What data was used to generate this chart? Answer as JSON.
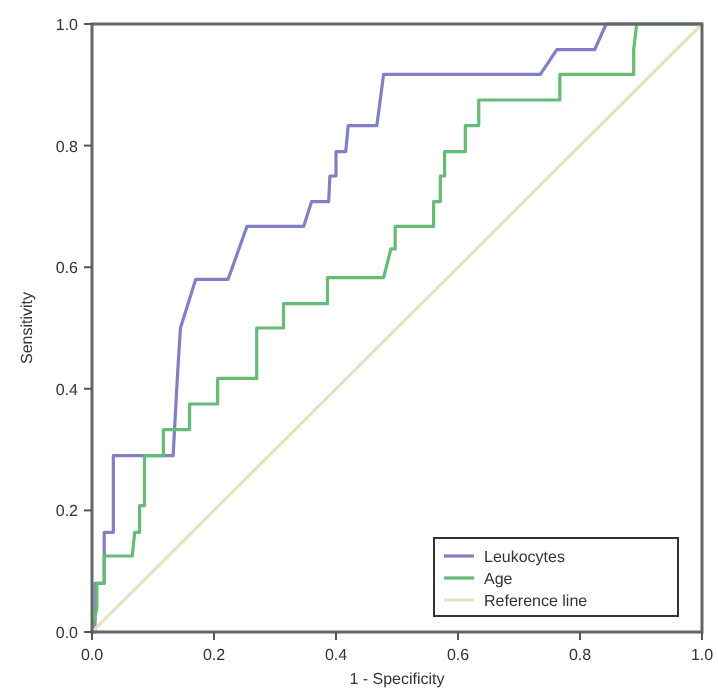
{
  "chart_data": {
    "type": "line",
    "xlabel": "1 - Specificity",
    "ylabel": "Sensitivity",
    "xlim": [
      0,
      1
    ],
    "ylim": [
      0,
      1
    ],
    "xticks": [
      {
        "value": 0,
        "label": "0.0"
      },
      {
        "value": 0.2,
        "label": "0.2"
      },
      {
        "value": 0.4,
        "label": "0.4"
      },
      {
        "value": 0.6,
        "label": "0.6"
      },
      {
        "value": 0.8,
        "label": "0.8"
      },
      {
        "value": 1,
        "label": "1.0"
      }
    ],
    "yticks": [
      {
        "value": 0,
        "label": "0.0"
      },
      {
        "value": 0.2,
        "label": "0.2"
      },
      {
        "value": 0.4,
        "label": "0.4"
      },
      {
        "value": 0.6,
        "label": "0.6"
      },
      {
        "value": 0.8,
        "label": "0.8"
      },
      {
        "value": 1,
        "label": "1.0"
      }
    ],
    "legend": "bottom right",
    "grid": false,
    "marker": "none",
    "line_style": "solid",
    "series": [
      {
        "name": "Leukocytes",
        "color": "#8080c4",
        "x": [
          0,
          0.005,
          0.005,
          0.02,
          0.02,
          0.035,
          0.035,
          0.133,
          0.14,
          0.145,
          0.17,
          0.223,
          0.254,
          0.347,
          0.36,
          0.388,
          0.39,
          0.4,
          0.4,
          0.416,
          0.42,
          0.467,
          0.478,
          0.735,
          0.762,
          0.824,
          0.843,
          1
        ],
        "values": [
          0,
          0,
          0.08,
          0.08,
          0.164,
          0.164,
          0.29,
          0.29,
          0.42,
          0.5,
          0.58,
          0.58,
          0.667,
          0.667,
          0.708,
          0.708,
          0.75,
          0.75,
          0.79,
          0.79,
          0.833,
          0.833,
          0.917,
          0.917,
          0.958,
          0.958,
          1,
          1
        ]
      },
      {
        "name": "Age",
        "color": "#66bb77",
        "x": [
          0,
          0.008,
          0.008,
          0.02,
          0.02,
          0.066,
          0.07,
          0.078,
          0.078,
          0.086,
          0.086,
          0.117,
          0.117,
          0.16,
          0.16,
          0.206,
          0.206,
          0.27,
          0.27,
          0.314,
          0.314,
          0.386,
          0.386,
          0.478,
          0.49,
          0.497,
          0.497,
          0.56,
          0.56,
          0.571,
          0.571,
          0.578,
          0.578,
          0.612,
          0.612,
          0.634,
          0.634,
          0.767,
          0.767,
          0.888,
          0.888,
          0.893,
          1
        ],
        "values": [
          0,
          0.04,
          0.08,
          0.08,
          0.125,
          0.125,
          0.164,
          0.164,
          0.208,
          0.208,
          0.29,
          0.29,
          0.333,
          0.333,
          0.375,
          0.375,
          0.417,
          0.417,
          0.5,
          0.5,
          0.54,
          0.54,
          0.583,
          0.583,
          0.63,
          0.63,
          0.667,
          0.667,
          0.708,
          0.708,
          0.75,
          0.75,
          0.79,
          0.79,
          0.833,
          0.833,
          0.875,
          0.875,
          0.917,
          0.917,
          0.958,
          1,
          1
        ]
      },
      {
        "name": "Reference line",
        "color": "#e6e2c4",
        "x": [
          0,
          1
        ],
        "values": [
          0,
          1
        ]
      }
    ]
  }
}
